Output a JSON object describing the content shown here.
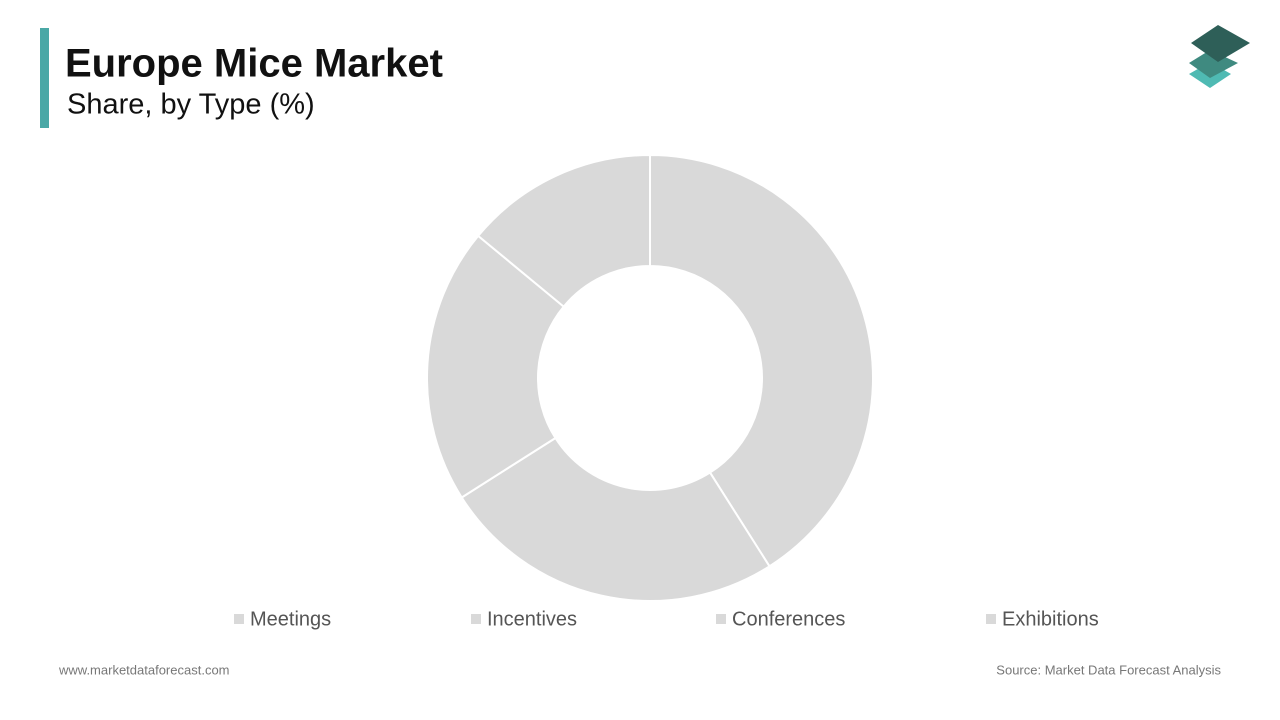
{
  "chart_data": {
    "type": "donut",
    "title": "Europe Mice Market",
    "subtitle": "Share, by Type (%)",
    "categories": [
      "Meetings",
      "Incentives",
      "Conferences",
      "Exhibitions"
    ],
    "values": [
      41,
      25,
      20,
      14
    ],
    "color": "#d9d9d9",
    "website": "www.marketdataforecast.com",
    "source": "Source: Market Data Forecast Analysis"
  }
}
